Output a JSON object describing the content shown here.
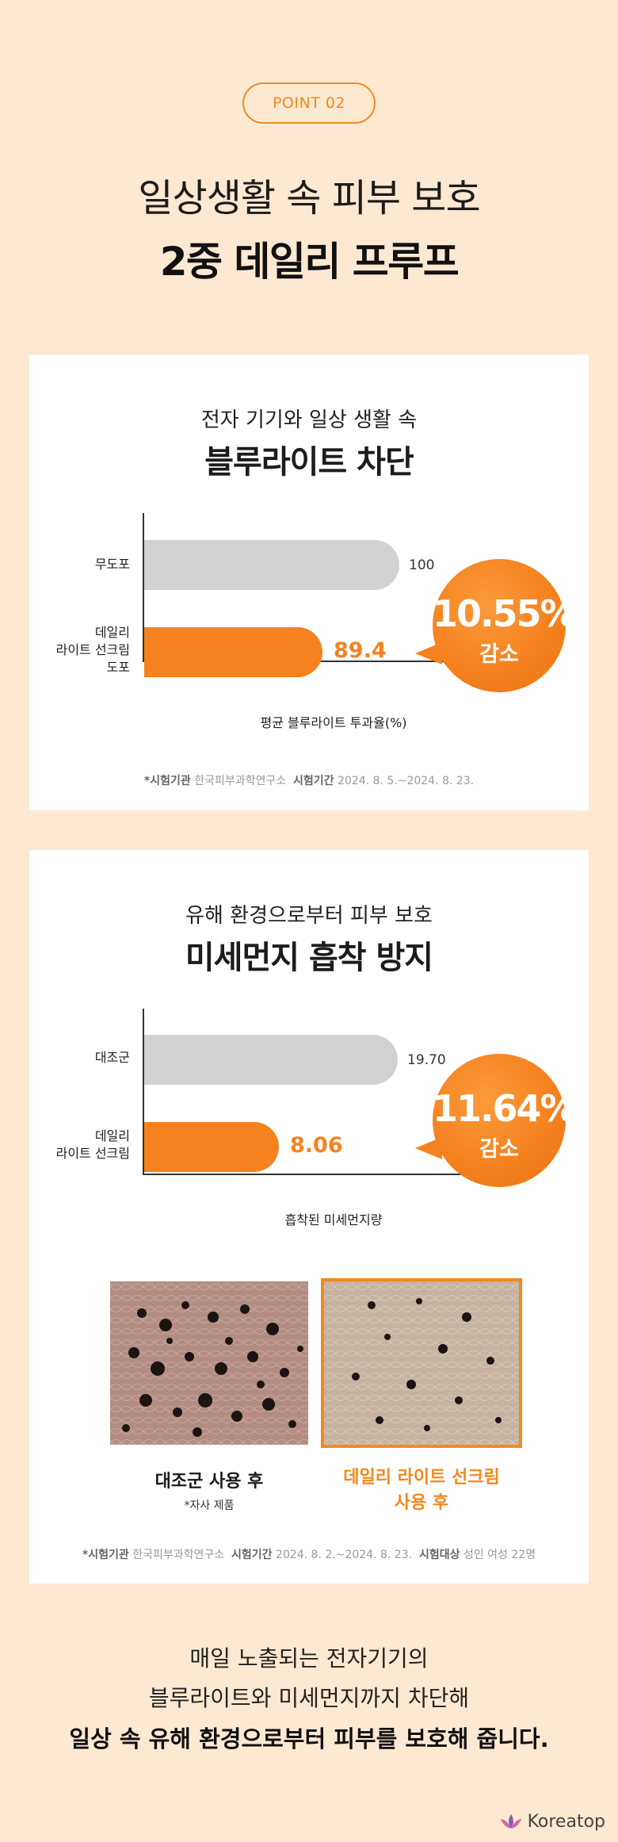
{
  "header": {
    "point_label": "POINT 02",
    "line1": "일상생활 속 피부 보호",
    "line2": "2중 데일리 프루프"
  },
  "card1": {
    "subtitle": "전자 기기와 일상 생활 속",
    "title": "블루라이트 차단",
    "bubble_value": "10.55%",
    "bubble_label": "감소",
    "x_caption": "평균 블루라이트 투과율(%)",
    "note_label1": "*시험기관",
    "note_value1": "한국피부과학연구소",
    "note_label2": "시험기간",
    "note_value2": "2024. 8. 5.~2024. 8. 23.",
    "chart_data": {
      "type": "bar",
      "orientation": "horizontal",
      "categories": [
        "무도포",
        "데일리 라이트 선크림 도포"
      ],
      "category_lines": [
        [
          "무도포"
        ],
        [
          "데일리",
          "라이트 선크림",
          "도포"
        ]
      ],
      "values": [
        100,
        89.4
      ],
      "value_labels": [
        "100",
        "89.4"
      ],
      "xlabel": "평균 블루라이트 투과율(%)",
      "colors": [
        "#d2d2d2",
        "#f5821f"
      ]
    }
  },
  "card2": {
    "subtitle": "유해 환경으로부터 피부 보호",
    "title": "미세먼지 흡착 방지",
    "bubble_value": "11.64%",
    "bubble_label": "감소",
    "x_caption": "흡착된 미세먼지량",
    "photo1_caption": "대조군 사용 후",
    "photo1_note": "*자사 제품",
    "photo2_caption_line1": "데일리 라이트 선크림",
    "photo2_caption_line2": "사용 후",
    "note_label1": "*시험기관",
    "note_value1": "한국피부과학연구소",
    "note_label2": "시험기간",
    "note_value2": "2024. 8. 2.~2024. 8. 23.",
    "note_label3": "시험대상",
    "note_value3": "성인 여성 22명",
    "chart_data": {
      "type": "bar",
      "orientation": "horizontal",
      "categories": [
        "대조군",
        "데일리 라이트 선크림"
      ],
      "category_lines": [
        [
          "대조군"
        ],
        [
          "데일리",
          "라이트 선크림"
        ]
      ],
      "values": [
        19.7,
        8.06
      ],
      "value_labels": [
        "19.70",
        "8.06"
      ],
      "xlabel": "흡착된 미세먼지량",
      "colors": [
        "#d2d2d2",
        "#f5821f"
      ]
    }
  },
  "footer": {
    "line1": "매일 노출되는 전자기기의",
    "line2": "블루라이트와 미세먼지까지 차단해",
    "line3": "일상 속 유해 환경으로부터 피부를 보호해 줍니다."
  },
  "brand": {
    "logo_text": "Koreatop",
    "logo_icon": "lotus-icon",
    "accent": "#f5821f"
  }
}
